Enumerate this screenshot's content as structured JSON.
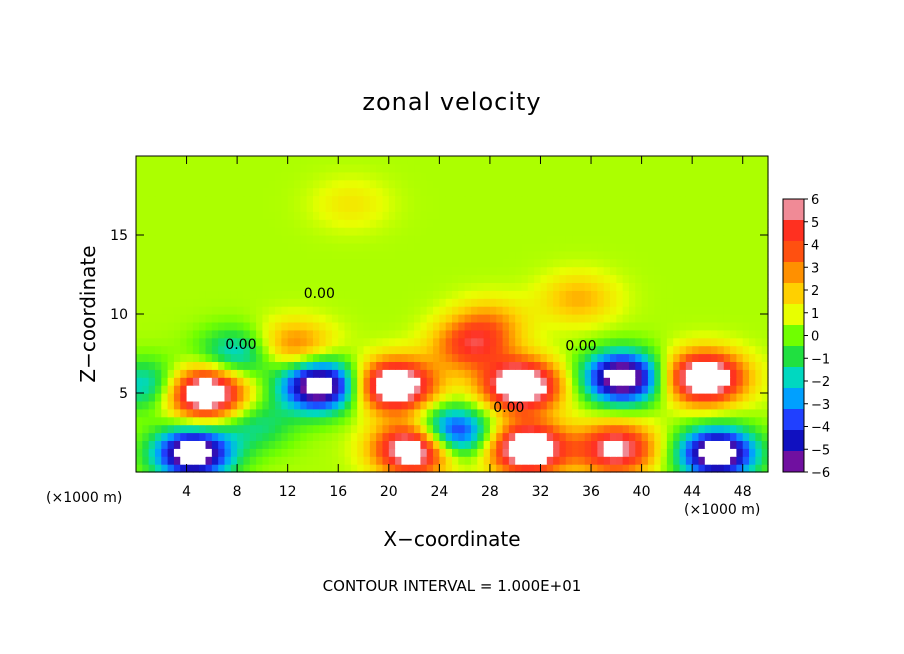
{
  "chart_data": {
    "type": "heatmap",
    "title": "zonal velocity",
    "xlabel": "X−coordinate",
    "ylabel": "Z−coordinate",
    "x_unit_label": "(×1000 m)",
    "xlim": [
      0,
      50
    ],
    "ylim": [
      0,
      20
    ],
    "x_ticks": [
      4,
      8,
      12,
      16,
      20,
      24,
      28,
      32,
      36,
      40,
      44,
      48
    ],
    "x_tick_labels": [
      "4",
      "8",
      "12",
      "16",
      "20",
      "24",
      "28",
      "32",
      "36",
      "40",
      "44",
      "48"
    ],
    "y_ticks": [
      5,
      10,
      15
    ],
    "y_tick_labels": [
      "5",
      "10",
      "15"
    ],
    "colorbar": {
      "min": -6,
      "max": 6,
      "labels": [
        "6",
        "5",
        "4",
        "3",
        "2",
        "1",
        "0",
        "−1",
        "−2",
        "−3",
        "−4",
        "−5",
        "−6"
      ],
      "colors": [
        "#f08a96",
        "#ff3020",
        "#ff5010",
        "#ff9000",
        "#ffd000",
        "#e8ff00",
        "#70ff00",
        "#20e040",
        "#00d8c0",
        "#00a0ff",
        "#2040ff",
        "#1010c0",
        "#7010a0"
      ]
    },
    "contour_labels": [
      {
        "text": "0.00",
        "x": 14.5,
        "z": 11.0
      },
      {
        "text": "0.00",
        "x": 8.3,
        "z": 7.8
      },
      {
        "text": "0.00",
        "x": 35.2,
        "z": 7.7
      },
      {
        "text": "0.00",
        "x": 29.5,
        "z": 3.8
      }
    ],
    "contour_interval_text": "CONTOUR INTERVAL = 1.000E+01",
    "background_value": 0.5,
    "features": [
      {
        "x": 5.5,
        "z": 5.0,
        "v": 8
      },
      {
        "x": 4.5,
        "z": 1.2,
        "v": -8
      },
      {
        "x": 14.5,
        "z": 5.5,
        "v": -8
      },
      {
        "x": 20.5,
        "z": 5.5,
        "v": 8
      },
      {
        "x": 22.0,
        "z": 1.5,
        "v": 8
      },
      {
        "x": 25.0,
        "z": 2.5,
        "v": -6
      },
      {
        "x": 30.5,
        "z": 5.5,
        "v": 8
      },
      {
        "x": 31.0,
        "z": 1.5,
        "v": 8
      },
      {
        "x": 38.5,
        "z": 6.0,
        "v": -8
      },
      {
        "x": 38.0,
        "z": 1.5,
        "v": 6
      },
      {
        "x": 45.0,
        "z": 6.0,
        "v": 8
      },
      {
        "x": 46.0,
        "z": 1.2,
        "v": -8
      },
      {
        "x": 28.0,
        "z": 9.5,
        "v": 2
      },
      {
        "x": 35.0,
        "z": 11.0,
        "v": 2
      },
      {
        "x": 17.0,
        "z": 17.0,
        "v": 1
      },
      {
        "x": 8.0,
        "z": 7.5,
        "v": -3
      },
      {
        "x": 9.5,
        "z": 3.0,
        "v": -2
      },
      {
        "x": 1.0,
        "z": 5.5,
        "v": -3
      },
      {
        "x": 26.5,
        "z": 8.0,
        "v": 4
      },
      {
        "x": 12.5,
        "z": 8.0,
        "v": 3
      }
    ]
  },
  "footnote": "CONTOUR INTERVAL = 1.000E+01"
}
